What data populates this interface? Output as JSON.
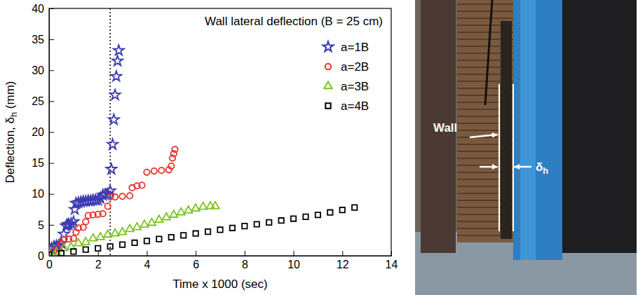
{
  "chart_data": {
    "type": "scatter",
    "title": "Wall lateral deflection (B = 25 cm)",
    "x_label": "Time x 1000 (sec)",
    "y_label": "Deflection, δh (mm)",
    "xlim": [
      0,
      14
    ],
    "xticks": [
      0,
      2,
      4,
      6,
      8,
      10,
      12,
      14
    ],
    "ylim": [
      0,
      40
    ],
    "yticks": [
      0,
      5,
      10,
      15,
      20,
      25,
      30,
      35,
      40
    ],
    "vline": 2.5,
    "legend": "upper right",
    "series": [
      {
        "name": "a=1B",
        "color": "#3b3bb3",
        "marker": "star",
        "x": [
          0,
          0.1,
          0.2,
          0.3,
          0.4,
          0.5,
          0.6,
          0.7,
          0.75,
          0.8,
          0.9,
          1.0,
          1.05,
          1.1,
          1.2,
          1.3,
          1.4,
          1.5,
          1.6,
          1.7,
          1.8,
          1.9,
          2.0,
          2.1,
          2.2,
          2.3,
          2.4,
          2.5,
          2.55,
          2.6,
          2.65,
          2.7,
          2.75,
          2.8,
          2.85
        ],
        "values": [
          0.5,
          1.2,
          1.5,
          1.6,
          1.7,
          2.0,
          3.5,
          4.8,
          5.0,
          5.1,
          5.2,
          5.5,
          7.5,
          8.5,
          8.6,
          8.7,
          8.8,
          8.8,
          8.9,
          8.9,
          9.0,
          9.0,
          9.0,
          9.3,
          9.8,
          9.9,
          10.0,
          10.5,
          14,
          18,
          22,
          26,
          29,
          31.5,
          33.2
        ]
      },
      {
        "name": "a=2B",
        "color": "#e8302a",
        "marker": "circle",
        "x": [
          0,
          0.2,
          0.4,
          0.5,
          0.6,
          0.8,
          1.0,
          1.1,
          1.2,
          1.4,
          1.5,
          1.6,
          1.8,
          2.0,
          2.2,
          2.4,
          2.5,
          2.7,
          3.0,
          3.3,
          3.4,
          3.6,
          3.8,
          4.0,
          4.3,
          4.6,
          4.9,
          5.0,
          5.05,
          5.1,
          5.15
        ],
        "values": [
          0.3,
          0.8,
          1.2,
          2.0,
          2.6,
          2.7,
          2.8,
          3.8,
          4.5,
          4.6,
          5.5,
          6.5,
          6.6,
          6.7,
          6.8,
          8.0,
          9.5,
          9.5,
          9.6,
          9.7,
          11.0,
          11.3,
          11.4,
          13.5,
          13.7,
          13.8,
          13.9,
          14.5,
          15.8,
          16.5,
          17.2
        ]
      },
      {
        "name": "a=3B",
        "color": "#7ac41f",
        "marker": "triangle",
        "x": [
          0,
          0.3,
          0.6,
          0.9,
          1.2,
          1.5,
          1.8,
          2.1,
          2.4,
          2.7,
          3.0,
          3.3,
          3.6,
          3.9,
          4.2,
          4.5,
          4.8,
          5.1,
          5.4,
          5.7,
          6.0,
          6.3,
          6.6,
          6.8
        ],
        "values": [
          0.3,
          0.6,
          1.2,
          1.4,
          2.0,
          2.2,
          2.8,
          3.0,
          3.4,
          3.6,
          3.8,
          4.3,
          4.6,
          5.0,
          5.3,
          5.8,
          6.2,
          6.6,
          7.0,
          7.3,
          7.6,
          7.9,
          8.0,
          8.0
        ]
      },
      {
        "name": "a=4B",
        "color": "#000000",
        "marker": "square",
        "x": [
          0,
          0.5,
          1,
          1.5,
          2,
          2.5,
          3,
          3.5,
          4,
          4.5,
          5,
          5.5,
          6,
          6.5,
          7,
          7.5,
          8,
          8.5,
          9,
          9.5,
          10,
          10.5,
          11,
          11.5,
          12,
          12.5
        ],
        "values": [
          0.2,
          0.4,
          0.7,
          1.0,
          1.2,
          1.5,
          1.8,
          2.1,
          2.4,
          2.7,
          3.0,
          3.3,
          3.6,
          3.9,
          4.2,
          4.5,
          4.8,
          5.1,
          5.4,
          5.7,
          6.0,
          6.3,
          6.6,
          7.0,
          7.4,
          7.8
        ]
      }
    ]
  },
  "photo": {
    "labels": {
      "wall": "Wall",
      "deflection": "δh"
    }
  }
}
